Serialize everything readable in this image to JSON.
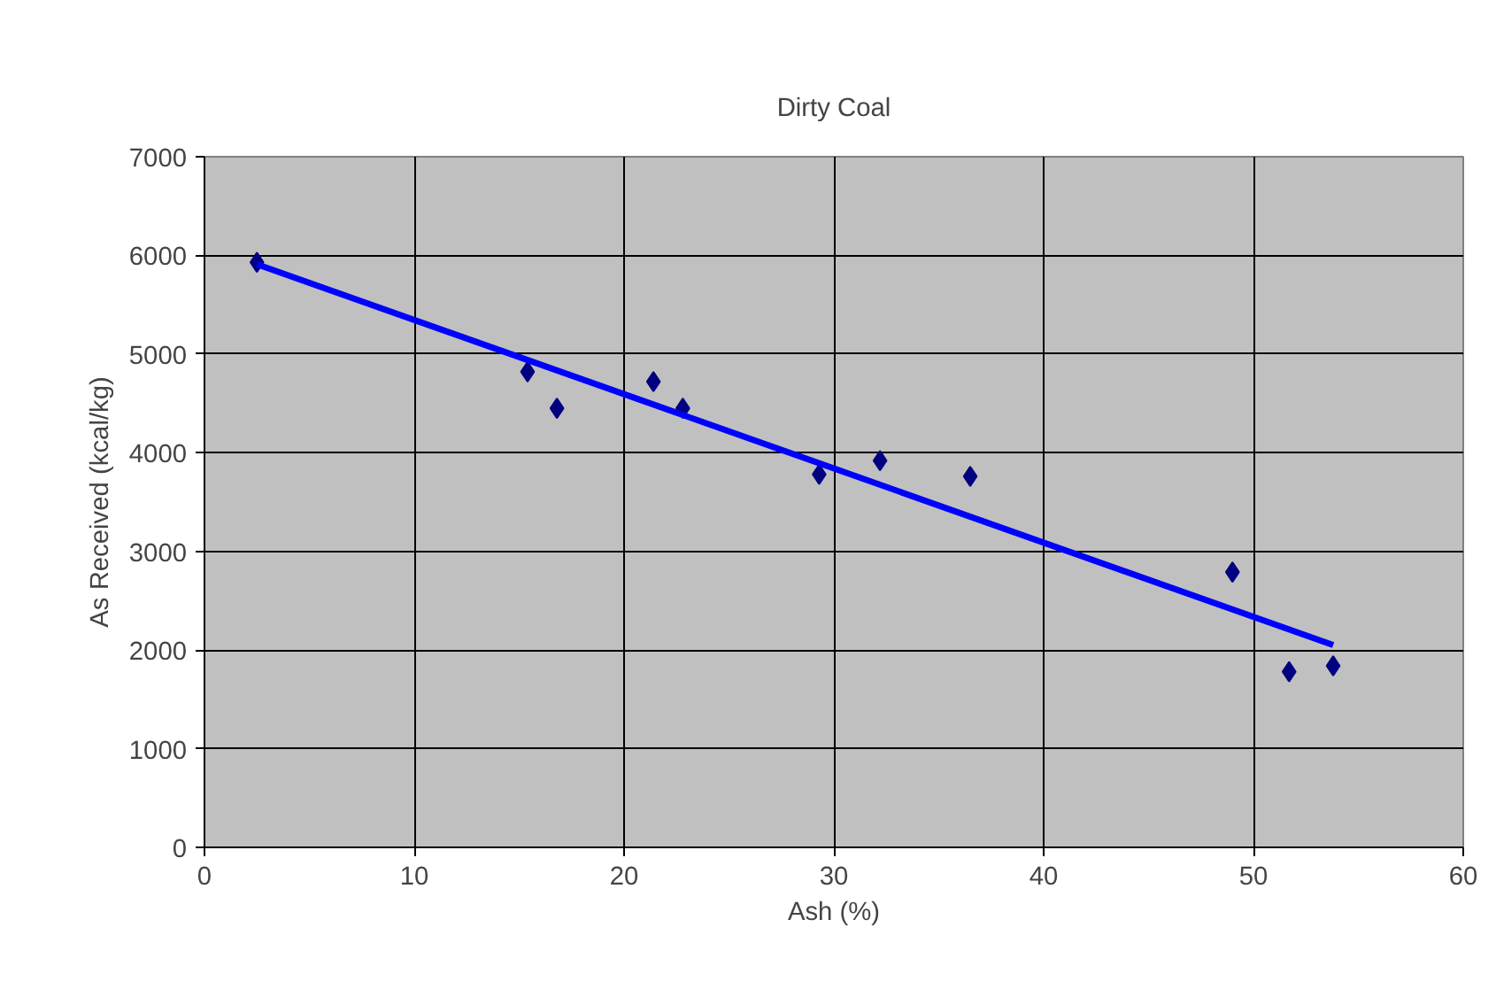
{
  "chart_data": {
    "type": "scatter",
    "title": "Dirty Coal",
    "xlabel": "Ash (%)",
    "ylabel": "As Received (kcal/kg)",
    "series": [
      {
        "color": "#000080",
        "marker": "diamond",
        "x": [
          2.5,
          15.4,
          16.8,
          21.4,
          22.8,
          29.3,
          32.2,
          36.5,
          49.0,
          51.7,
          53.8
        ],
        "values": [
          5930,
          4820,
          4450,
          4720,
          4450,
          3780,
          3920,
          3760,
          2790,
          1780,
          1840
        ]
      },
      {
        "type": "line",
        "marker": "none",
        "color": "#0000ff",
        "x": [
          2.5,
          53.8
        ],
        "values": [
          5910,
          2050
        ]
      }
    ],
    "xlim": [
      0,
      60
    ],
    "xticks": [
      0,
      10,
      20,
      30,
      40,
      50,
      60
    ],
    "ylim": [
      0,
      7000
    ],
    "yticks": [
      0,
      1000,
      2000,
      3000,
      4000,
      5000,
      6000,
      7000
    ],
    "grid": true,
    "line_style": "solid"
  }
}
